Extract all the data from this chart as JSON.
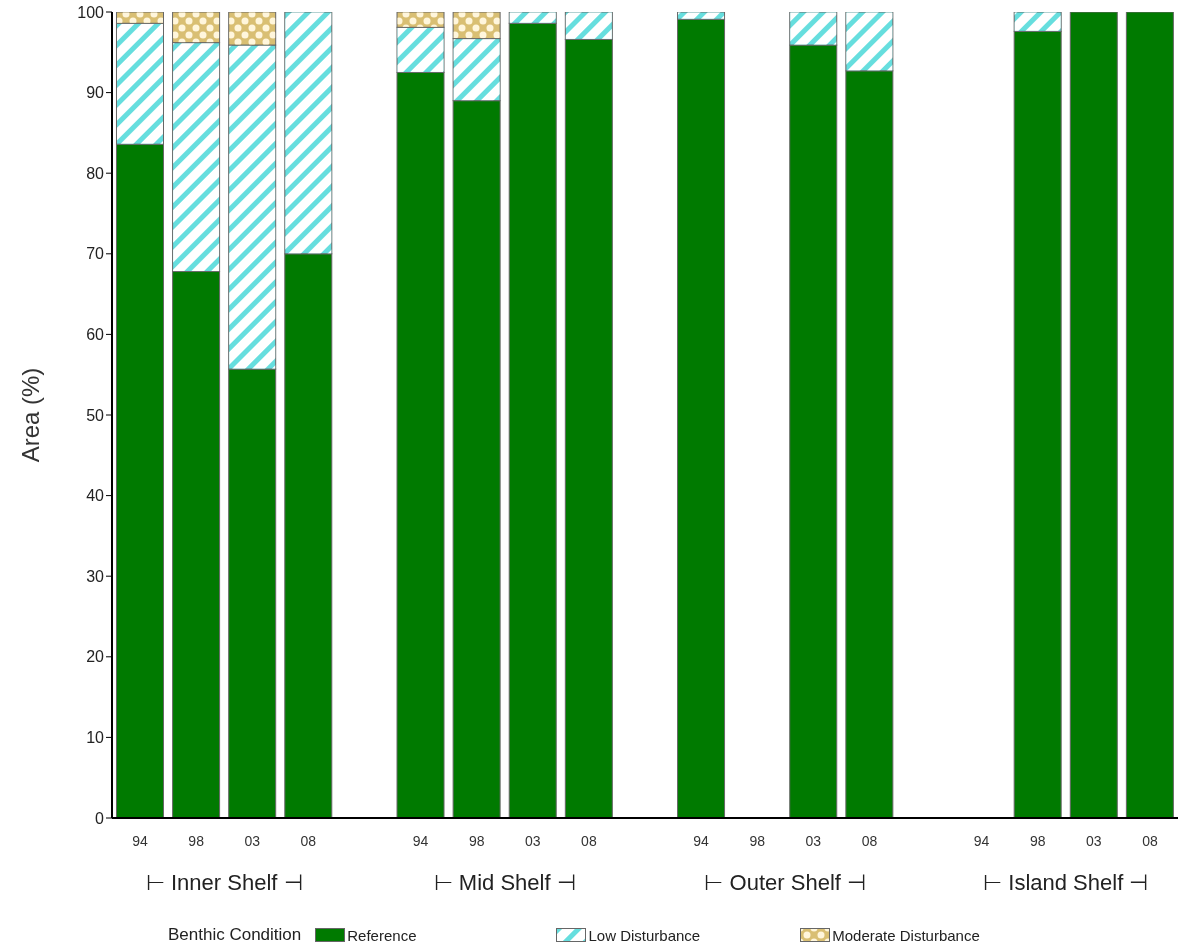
{
  "chart_data": {
    "type": "bar",
    "stacked": true,
    "ylabel": "Area (%)",
    "legend_title": "Benthic Condition",
    "legend": "bottom",
    "categories": [
      "94",
      "98",
      "03",
      "08",
      null,
      "94",
      "98",
      "03",
      "08",
      null,
      "94",
      "98",
      "03",
      "08",
      null,
      "94",
      "98",
      "03",
      "08"
    ],
    "series": [
      {
        "name": "Reference",
        "color": "#007a00",
        "values": [
          83.6,
          67.8,
          55.7,
          70,
          null,
          92.5,
          89,
          98.6,
          96.6,
          null,
          99.1,
          null,
          95.9,
          92.7,
          null,
          null,
          97.6,
          100,
          100
        ]
      },
      {
        "name": "Low Disturbance",
        "color": "#66dede",
        "values": [
          15,
          28.4,
          40.2,
          30,
          null,
          5.6,
          7.7,
          1.4,
          3.4,
          null,
          0.9,
          null,
          4.1,
          7.3,
          null,
          null,
          2.4,
          0,
          0
        ]
      },
      {
        "name": "Moderate Disturbance",
        "color": "#d9bf73",
        "values": [
          1.4,
          3.8,
          4.1,
          0,
          null,
          1.9,
          3.3,
          0,
          0,
          null,
          0,
          null,
          0,
          0,
          null,
          null,
          0,
          0,
          0
        ]
      }
    ],
    "annotations": [
      "⊢ Inner Shelf ⊣",
      "⊢ Mid Shelf ⊣",
      "⊢ Outer Shelf ⊣",
      "⊢ Island Shelf ⊣"
    ],
    "ylim": [
      0,
      100
    ],
    "yticks": [
      0,
      10,
      20,
      30,
      40,
      50,
      60,
      70,
      80,
      90,
      100
    ]
  }
}
